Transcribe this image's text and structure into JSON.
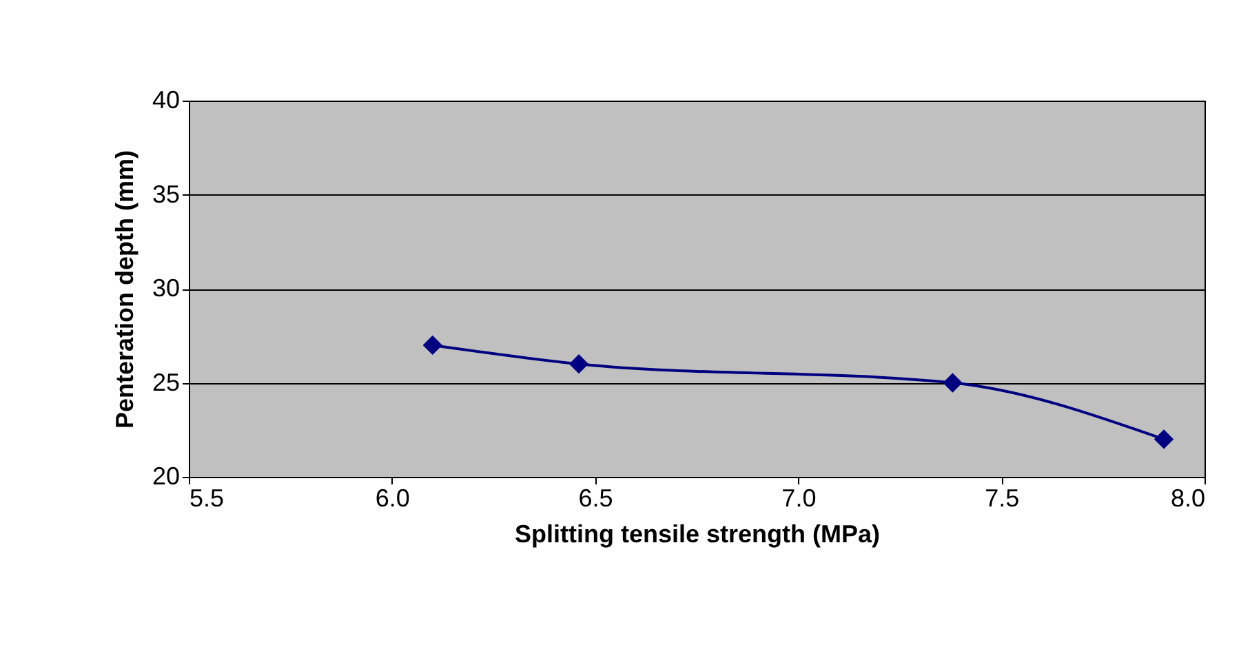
{
  "chart_data": {
    "type": "line",
    "xlabel": "Splitting tensile strength (MPa)",
    "ylabel": "Penteration depth (mm)",
    "x": [
      6.1,
      6.46,
      7.38,
      7.9
    ],
    "series": [
      {
        "color": "#000080",
        "values": [
          27,
          26,
          25,
          22
        ]
      }
    ],
    "xlim": [
      5.5,
      8
    ],
    "xticks": [
      5.5,
      {
        "value": 6,
        "label": "6.0"
      },
      6.5,
      {
        "value": 7,
        "label": "7.0"
      },
      7.5,
      {
        "value": 8,
        "label": "8.0"
      }
    ],
    "ylim": [
      20,
      40
    ],
    "yticks": [
      20,
      25,
      30,
      35,
      40
    ],
    "grid": "y",
    "marker": "diamond",
    "line_style": "solid",
    "legend": false
  }
}
